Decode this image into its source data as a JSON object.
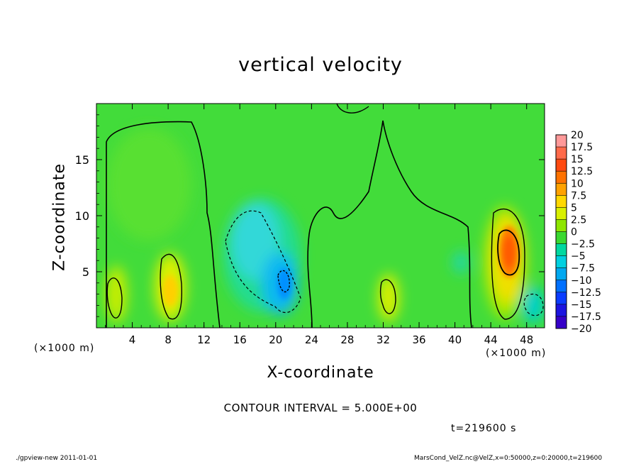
{
  "chart_data": {
    "type": "heatmap",
    "title": "vertical velocity",
    "xlabel": "X-coordinate",
    "ylabel": "Z-coordinate",
    "x_unit_label": "(×1000 m)",
    "xlim": [
      0,
      50
    ],
    "ylim": [
      0,
      20
    ],
    "x_ticks": [
      4,
      8,
      12,
      16,
      20,
      24,
      28,
      32,
      36,
      40,
      44,
      48
    ],
    "y_ticks": [
      5,
      10,
      15
    ],
    "colorbar": {
      "labels": [
        "20",
        "17.5",
        "15",
        "12.5",
        "10",
        "7.5",
        "5",
        "2.5",
        "0",
        "−2.5",
        "−5",
        "−7.5",
        "−10",
        "−12.5",
        "−15",
        "−17.5",
        "−20"
      ],
      "values": [
        20,
        17.5,
        15,
        12.5,
        10,
        7.5,
        5,
        2.5,
        0,
        -2.5,
        -5,
        -7.5,
        -10,
        -12.5,
        -15,
        -17.5,
        -20
      ],
      "colors": [
        "#ff9999",
        "#ff6a4a",
        "#ff4a10",
        "#ff7200",
        "#ffa200",
        "#ffd800",
        "#d8f000",
        "#8ee600",
        "#3ad830",
        "#00d8a0",
        "#00d0e0",
        "#00a8f0",
        "#0070ff",
        "#0a3cff",
        "#1c14e0",
        "#3600c8",
        "#5a00b0"
      ]
    },
    "features": [
      {
        "kind": "updraft",
        "x_center": 45.8,
        "z_center": 7.5,
        "peak": 12.5
      },
      {
        "kind": "updraft",
        "x_center": 8.2,
        "z_center": 3.5,
        "peak": 7.5
      },
      {
        "kind": "updraft",
        "x_center": 2.2,
        "z_center": 3.0,
        "peak": 5
      },
      {
        "kind": "updraft",
        "x_center": 32.3,
        "z_center": 2.7,
        "peak": 5
      },
      {
        "kind": "downdraft",
        "x_center": 20.8,
        "z_center": 4.0,
        "peak": -12.5
      },
      {
        "kind": "downdraft",
        "x_center": 18.5,
        "z_center": 7.5,
        "peak": -7.5
      },
      {
        "kind": "downdraft",
        "x_center": 48.5,
        "z_center": 2.0,
        "peak": -5
      }
    ],
    "contour_interval_text": "CONTOUR INTERVAL = 5.000E+00",
    "time_text": "t=219600 s",
    "grid": false,
    "legend_position": "right"
  },
  "footer": {
    "left": "./gpview-new   2011-01-01",
    "right": "MarsCond_VelZ.nc@VelZ,x=0:50000,z=0:20000,t=219600"
  }
}
